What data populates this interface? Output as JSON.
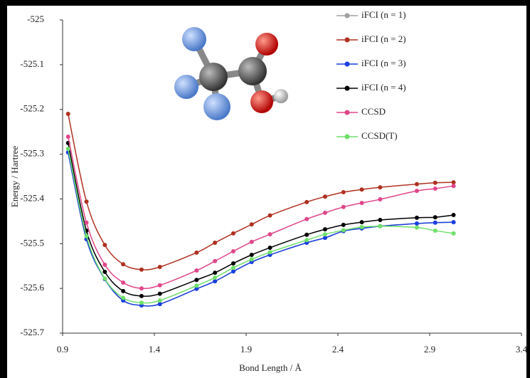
{
  "chart_data": {
    "type": "line",
    "x_label": "Bond Length / Å",
    "y_label": "Energy / Hartree",
    "x": [
      0.93,
      1.03,
      1.13,
      1.23,
      1.33,
      1.43,
      1.63,
      1.73,
      1.83,
      1.93,
      2.03,
      2.23,
      2.33,
      2.43,
      2.53,
      2.63,
      2.83,
      2.93,
      3.03
    ],
    "series": [
      {
        "name": "iFCI (n = 1)",
        "color": "#a0a0a0",
        "values": [
          -525.296,
          -525.49,
          -525.579,
          -525.627,
          -525.638,
          -525.635,
          -525.601,
          -525.584,
          -525.562,
          -525.541,
          -525.525,
          -525.498,
          -525.487,
          -525.472,
          -525.466,
          -525.461,
          -525.455,
          -525.453,
          -525.452
        ]
      },
      {
        "name": "iFCI (n = 2)",
        "color": "#b03020",
        "values": [
          -525.21,
          -525.406,
          -525.503,
          -525.546,
          -525.558,
          -525.552,
          -525.52,
          -525.498,
          -525.477,
          -525.457,
          -525.437,
          -525.407,
          -525.395,
          -525.385,
          -525.379,
          -525.374,
          -525.367,
          -525.364,
          -525.363
        ]
      },
      {
        "name": "iFCI (n = 3)",
        "color": "#1a3fe0",
        "values": [
          -525.296,
          -525.49,
          -525.579,
          -525.627,
          -525.638,
          -525.635,
          -525.601,
          -525.584,
          -525.562,
          -525.541,
          -525.525,
          -525.498,
          -525.487,
          -525.472,
          -525.466,
          -525.461,
          -525.455,
          -525.453,
          -525.452
        ]
      },
      {
        "name": "iFCI (n = 4)",
        "color": "#000000",
        "values": [
          -525.275,
          -525.471,
          -525.563,
          -525.606,
          -525.617,
          -525.612,
          -525.581,
          -525.565,
          -525.544,
          -525.525,
          -525.509,
          -525.48,
          -525.468,
          -525.458,
          -525.452,
          -525.447,
          -525.442,
          -525.441,
          -525.436
        ]
      },
      {
        "name": "CCSD",
        "color": "#e0468a",
        "values": [
          -525.261,
          -525.453,
          -525.547,
          -525.587,
          -525.6,
          -525.593,
          -525.56,
          -525.539,
          -525.517,
          -525.496,
          -525.479,
          -525.445,
          -525.431,
          -525.418,
          -525.409,
          -525.401,
          -525.382,
          -525.377,
          -525.371
        ]
      },
      {
        "name": "CCSD(T)",
        "color": "#6ee06a",
        "values": [
          -525.288,
          -525.483,
          -525.578,
          -525.621,
          -525.632,
          -525.627,
          -525.594,
          -525.576,
          -525.554,
          -525.535,
          -525.519,
          -525.492,
          -525.479,
          -525.47,
          -525.463,
          -525.461,
          -525.464,
          -525.471,
          -525.477
        ]
      }
    ],
    "xlim": [
      0.9,
      3.4
    ],
    "xticks": [
      0.9,
      1.4,
      1.9,
      2.4,
      2.9,
      3.4
    ],
    "ylim": [
      -525.7,
      -525
    ],
    "yticks": [
      -525,
      -525.1,
      -525.2,
      -525.3,
      -525.4,
      -525.5,
      -525.6,
      -525.7
    ],
    "grid": false,
    "legend": "top-right"
  }
}
